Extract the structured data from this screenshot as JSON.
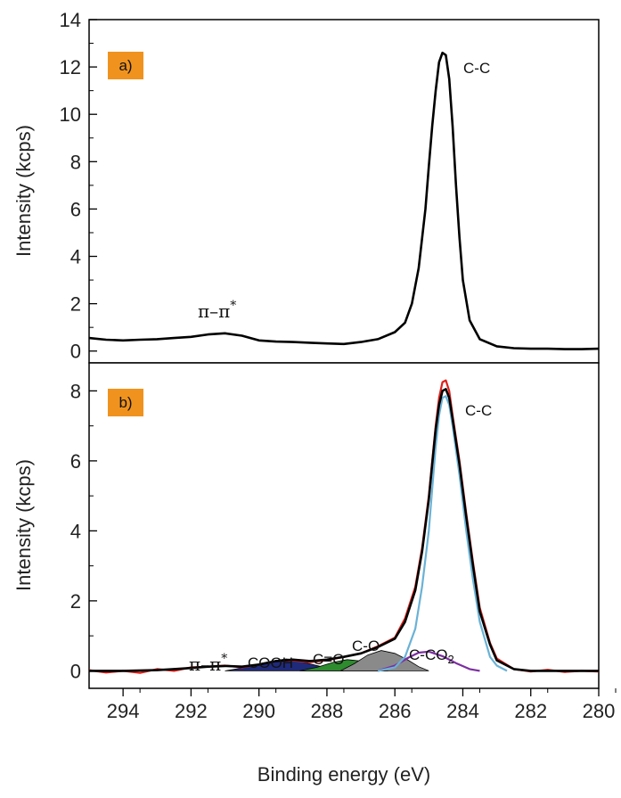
{
  "chart_data": [
    {
      "type": "line",
      "panel_label": "a)",
      "ylabel": "Intensity (kcps)",
      "xlabel": "",
      "xlim": [
        295,
        280
      ],
      "ylim": [
        -0.5,
        14
      ],
      "yticks": [
        0,
        2,
        4,
        6,
        8,
        10,
        12,
        14
      ],
      "series": [
        {
          "color": "#000000",
          "x": [
            295,
            294.5,
            294,
            293.5,
            293,
            292.5,
            292,
            291.5,
            291,
            290.5,
            290,
            289.5,
            289,
            288.5,
            288,
            287.5,
            287,
            286.5,
            286,
            285.7,
            285.5,
            285.3,
            285.1,
            285,
            284.9,
            284.8,
            284.7,
            284.6,
            284.5,
            284.4,
            284.3,
            284.2,
            284.1,
            284,
            283.8,
            283.5,
            283,
            282.5,
            282,
            281.5,
            281,
            280.5,
            280
          ],
          "y": [
            0.55,
            0.48,
            0.45,
            0.48,
            0.5,
            0.55,
            0.6,
            0.7,
            0.75,
            0.65,
            0.45,
            0.4,
            0.38,
            0.35,
            0.32,
            0.3,
            0.38,
            0.5,
            0.8,
            1.2,
            2.0,
            3.5,
            6.0,
            7.8,
            9.5,
            11.0,
            12.2,
            12.6,
            12.5,
            11.5,
            9.5,
            7.0,
            4.8,
            3.0,
            1.3,
            0.5,
            0.2,
            0.12,
            0.1,
            0.1,
            0.08,
            0.08,
            0.1
          ]
        }
      ],
      "annotations": [
        {
          "text": "C-C",
          "x": 283.9,
          "y": 12.1
        },
        {
          "text": "π–π*",
          "x": 291.2,
          "y": 1.5
        }
      ]
    },
    {
      "type": "line",
      "panel_label": "b)",
      "ylabel": "Intensity (kcps)",
      "xlabel": "Binding energy (eV)",
      "xlim": [
        295,
        280
      ],
      "ylim": [
        -0.5,
        8.8
      ],
      "xticks": [
        294,
        292,
        290,
        288,
        286,
        284,
        282,
        280
      ],
      "yticks": [
        0,
        2,
        4,
        6,
        8
      ],
      "series": [
        {
          "kind": "fill",
          "color": "#1f2a7a",
          "x": [
            291,
            290.5,
            290,
            289.5,
            289.2,
            289,
            288.5,
            288,
            287.5
          ],
          "y": [
            0.0,
            0.08,
            0.2,
            0.3,
            0.34,
            0.32,
            0.2,
            0.08,
            0.0
          ]
        },
        {
          "kind": "fill",
          "color": "#2e8b2e",
          "x": [
            288.8,
            288.3,
            287.8,
            287.4,
            287,
            286.6,
            286.2
          ],
          "y": [
            0.0,
            0.1,
            0.25,
            0.32,
            0.28,
            0.12,
            0.0
          ]
        },
        {
          "kind": "fill",
          "color": "#8a8a8a",
          "x": [
            287.6,
            287.2,
            286.8,
            286.4,
            286,
            285.6,
            285.3,
            285
          ],
          "y": [
            0.0,
            0.2,
            0.45,
            0.58,
            0.5,
            0.3,
            0.12,
            0.0
          ]
        },
        {
          "kind": "line",
          "color": "#7b2fa0",
          "x": [
            286.5,
            286,
            285.6,
            285.3,
            285,
            284.6,
            284.2,
            283.8,
            283.5
          ],
          "y": [
            0.0,
            0.15,
            0.38,
            0.52,
            0.55,
            0.42,
            0.22,
            0.05,
            0.0
          ]
        },
        {
          "kind": "line",
          "color": "#6ab2d6",
          "x": [
            286.5,
            286,
            285.7,
            285.4,
            285.2,
            285,
            284.9,
            284.8,
            284.7,
            284.6,
            284.5,
            284.4,
            284.3,
            284.1,
            283.9,
            283.7,
            283.5,
            283.2,
            283,
            282.7
          ],
          "y": [
            0.0,
            0.1,
            0.4,
            1.2,
            2.4,
            4.0,
            5.2,
            6.4,
            7.3,
            7.8,
            7.85,
            7.6,
            7.0,
            5.6,
            4.0,
            2.6,
            1.4,
            0.4,
            0.15,
            0.0
          ]
        },
        {
          "kind": "line",
          "color": "#e0201a",
          "x": [
            295,
            294.5,
            294,
            293.5,
            293,
            292.5,
            292,
            291.5,
            291,
            290.5,
            290,
            289.5,
            289,
            288.5,
            288,
            287.5,
            287,
            286.5,
            286,
            285.7,
            285.4,
            285.2,
            285,
            284.9,
            284.8,
            284.7,
            284.6,
            284.5,
            284.4,
            284.3,
            284.1,
            283.9,
            283.7,
            283.5,
            283.2,
            283,
            282.5,
            282,
            281.5,
            281,
            280.5,
            280
          ],
          "y": [
            0.02,
            -0.05,
            0.0,
            -0.06,
            0.05,
            0.0,
            0.1,
            0.12,
            0.15,
            0.1,
            0.18,
            0.28,
            0.3,
            0.25,
            0.3,
            0.4,
            0.5,
            0.7,
            0.95,
            1.5,
            2.4,
            3.5,
            5.0,
            6.0,
            7.0,
            7.8,
            8.25,
            8.3,
            8.0,
            7.3,
            6.0,
            4.5,
            3.1,
            1.8,
            0.8,
            0.35,
            0.05,
            -0.02,
            0.03,
            -0.03,
            0.0,
            -0.02
          ]
        },
        {
          "kind": "line",
          "color": "#000000",
          "x": [
            295,
            294,
            293,
            292.5,
            292,
            291.5,
            291,
            290.5,
            290,
            289.5,
            289,
            288.5,
            288,
            287.5,
            287,
            286.5,
            286,
            285.7,
            285.4,
            285.2,
            285,
            284.9,
            284.8,
            284.7,
            284.6,
            284.5,
            284.4,
            284.3,
            284.1,
            283.9,
            283.7,
            283.5,
            283.2,
            283,
            282.5,
            282,
            281,
            280
          ],
          "y": [
            0.0,
            0.0,
            0.02,
            0.05,
            0.08,
            0.12,
            0.14,
            0.12,
            0.18,
            0.28,
            0.32,
            0.28,
            0.32,
            0.4,
            0.5,
            0.68,
            0.92,
            1.4,
            2.3,
            3.4,
            4.9,
            5.9,
            6.9,
            7.6,
            8.0,
            8.05,
            7.8,
            7.2,
            5.9,
            4.4,
            3.0,
            1.7,
            0.75,
            0.3,
            0.05,
            0.0,
            0.0,
            0.0
          ]
        }
      ],
      "annotations": [
        {
          "text": "C-C",
          "x": 283.9,
          "y": 7.8
        },
        {
          "text": "π–π*",
          "x": 291.7,
          "y": 0.65
        },
        {
          "text": "COOH",
          "x": 289.2,
          "y": 0.6
        },
        {
          "text": "C=O",
          "x": 287.6,
          "y": 0.7
        },
        {
          "text": "C-O",
          "x": 286.7,
          "y": 1.2
        },
        {
          "text": "C-CO",
          "sub": "2",
          "x": 285.3,
          "y": 1.0
        }
      ]
    }
  ]
}
